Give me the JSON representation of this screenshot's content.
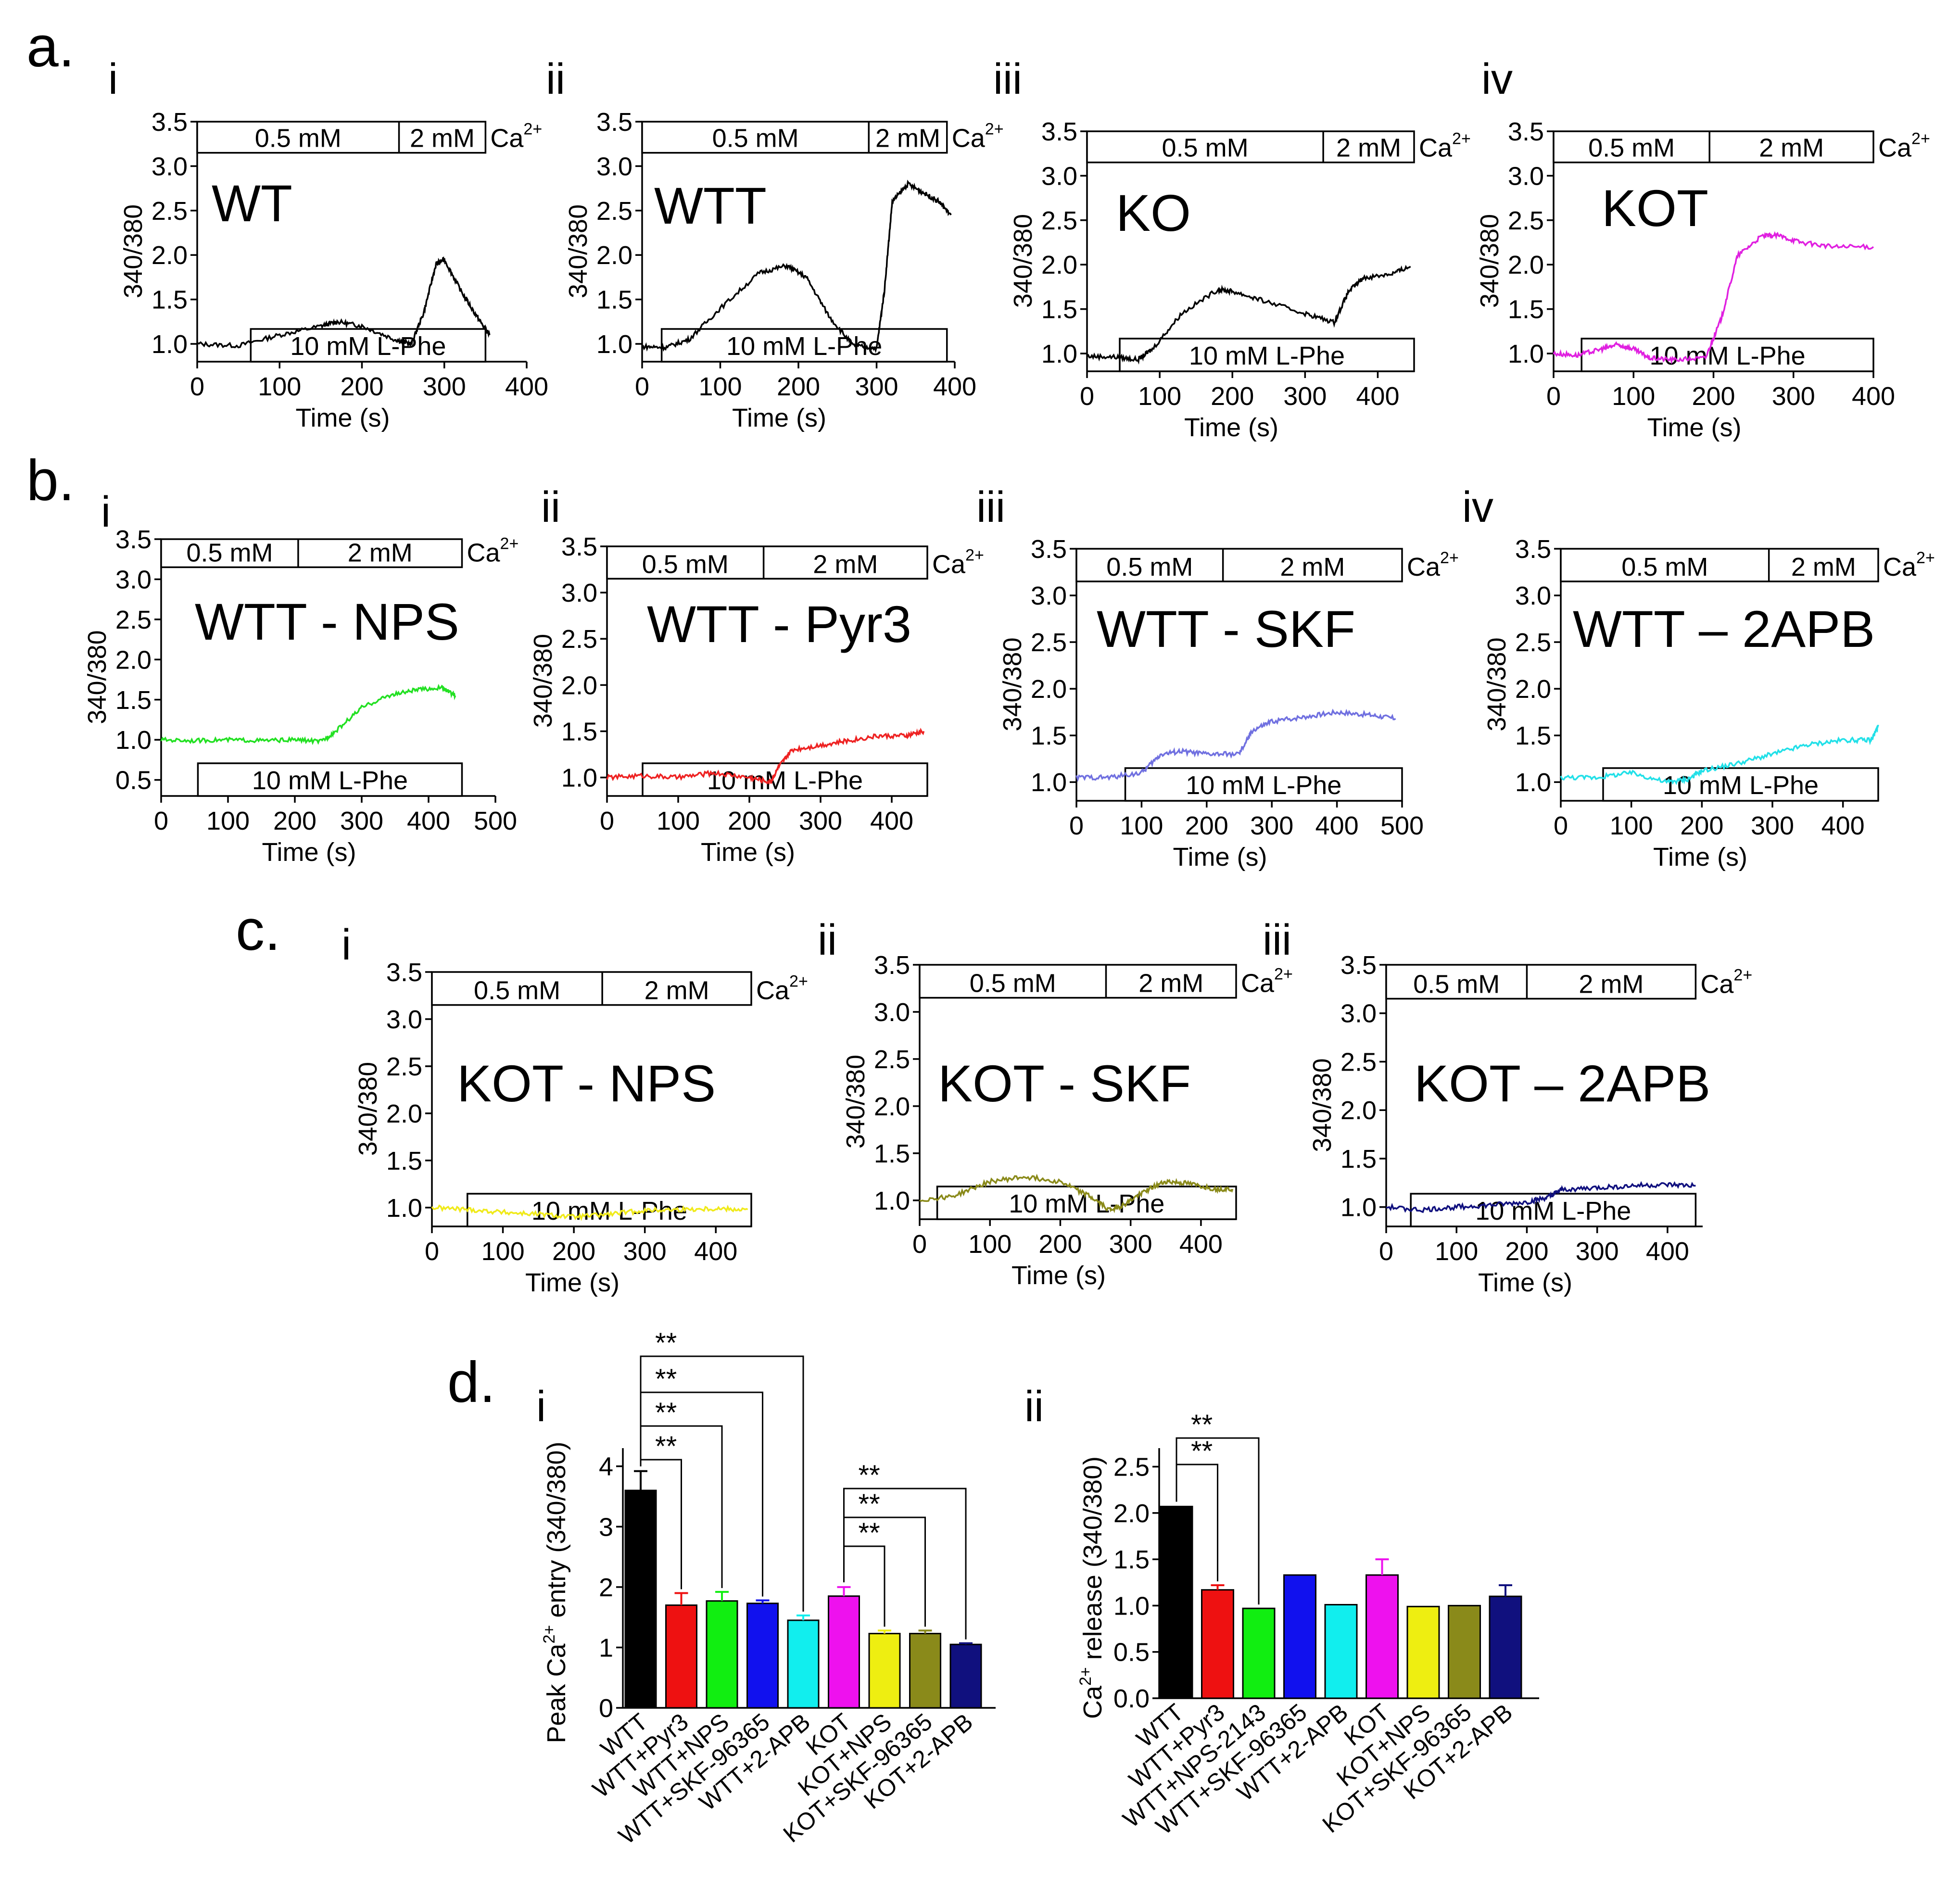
{
  "figure_labels": {
    "panels": [
      "a.",
      "b.",
      "c.",
      "d."
    ],
    "roman": [
      "i",
      "ii",
      "iii",
      "iv"
    ]
  },
  "common": {
    "y_label": "340/380",
    "x_label": "Time (s)",
    "ca_label": "Ca",
    "ca_sup": "2+",
    "low_ca": "0.5 mM",
    "high_ca": "2 mM",
    "lphe": "10 mM L-Phe"
  },
  "chart_data": [
    {
      "id": "a-i",
      "type": "line",
      "title": "WT",
      "xlabel": "Time (s)",
      "ylabel": "340/380",
      "xlim": [
        0,
        400
      ],
      "ylim": [
        0.8,
        3.5
      ],
      "xticks": [
        "0",
        "100",
        "200",
        "300",
        "400"
      ],
      "yticks": [
        "1.0",
        "1.5",
        "2.0",
        "2.5",
        "3.0",
        "3.5"
      ],
      "ca_switch_s": 245,
      "ca_end_s": 350,
      "lphe_start_s": 65,
      "lphe_end_s": 350,
      "color": "#000000",
      "series": [
        {
          "name": "WT",
          "x": [
            0,
            50,
            100,
            150,
            170,
            200,
            240,
            260,
            275,
            290,
            300,
            320,
            340,
            355
          ],
          "y": [
            1.0,
            0.98,
            1.1,
            1.2,
            1.25,
            1.2,
            1.05,
            1.0,
            1.35,
            1.9,
            1.95,
            1.6,
            1.3,
            1.1
          ]
        }
      ]
    },
    {
      "id": "a-ii",
      "type": "line",
      "title": "WTT",
      "xlabel": "Time (s)",
      "ylabel": "340/380",
      "xlim": [
        0,
        400
      ],
      "ylim": [
        0.8,
        3.5
      ],
      "xticks": [
        "0",
        "100",
        "200",
        "300",
        "400"
      ],
      "yticks": [
        "1.0",
        "1.5",
        "2.0",
        "2.5",
        "3.0",
        "3.5"
      ],
      "ca_switch_s": 290,
      "ca_end_s": 390,
      "lphe_start_s": 25,
      "lphe_end_s": 390,
      "color": "#000000",
      "series": [
        {
          "name": "WTT",
          "x": [
            0,
            30,
            60,
            100,
            150,
            185,
            210,
            240,
            270,
            300,
            310,
            320,
            340,
            360,
            380,
            395
          ],
          "y": [
            0.97,
            0.96,
            1.05,
            1.4,
            1.8,
            1.88,
            1.75,
            1.3,
            0.98,
            0.95,
            1.6,
            2.6,
            2.8,
            2.7,
            2.6,
            2.45
          ]
        }
      ]
    },
    {
      "id": "a-iii",
      "type": "line",
      "title": "KO",
      "xlabel": "Time (s)",
      "ylabel": "340/380",
      "xlim": [
        0,
        450
      ],
      "ylim": [
        0.8,
        3.5
      ],
      "xticks": [
        "0",
        "100",
        "200",
        "300",
        "400"
      ],
      "yticks": [
        "1.0",
        "1.5",
        "2.0",
        "2.5",
        "3.0",
        "3.5"
      ],
      "ca_switch_s": 325,
      "ca_end_s": 450,
      "lphe_start_s": 45,
      "lphe_end_s": 450,
      "color": "#000000",
      "series": [
        {
          "name": "KO",
          "x": [
            0,
            40,
            70,
            90,
            130,
            180,
            200,
            240,
            300,
            340,
            360,
            380,
            420,
            445
          ],
          "y": [
            0.97,
            0.96,
            0.93,
            1.05,
            1.45,
            1.72,
            1.7,
            1.6,
            1.45,
            1.35,
            1.7,
            1.85,
            1.9,
            1.98
          ]
        }
      ]
    },
    {
      "id": "a-iv",
      "type": "line",
      "title": "KOT",
      "xlabel": "Time (s)",
      "ylabel": "340/380",
      "xlim": [
        0,
        400
      ],
      "ylim": [
        0.8,
        3.5
      ],
      "xticks": [
        "0",
        "100",
        "200",
        "300",
        "400"
      ],
      "yticks": [
        "1.0",
        "1.5",
        "2.0",
        "2.5",
        "3.0",
        "3.5"
      ],
      "ca_switch_s": 195,
      "ca_end_s": 400,
      "lphe_start_s": 35,
      "lphe_end_s": 400,
      "color": "#e020e0",
      "series": [
        {
          "name": "KOT",
          "x": [
            0,
            30,
            60,
            80,
            100,
            120,
            150,
            190,
            210,
            230,
            260,
            280,
            310,
            350,
            400
          ],
          "y": [
            1.0,
            0.98,
            1.05,
            1.1,
            1.05,
            0.95,
            0.93,
            0.95,
            1.4,
            2.1,
            2.32,
            2.33,
            2.25,
            2.2,
            2.2
          ]
        }
      ]
    },
    {
      "id": "b-i",
      "type": "line",
      "title": "WTT - NPS",
      "xlabel": "Time (s)",
      "ylabel": "340/380",
      "xlim": [
        0,
        500
      ],
      "ylim": [
        0.3,
        3.5
      ],
      "xticks": [
        "0",
        "100",
        "200",
        "300",
        "400",
        "500"
      ],
      "yticks": [
        "0.5",
        "1.0",
        "1.5",
        "2.0",
        "2.5",
        "3.0",
        "3.5"
      ],
      "ca_switch_s": 205,
      "ca_end_s": 450,
      "lphe_start_s": 55,
      "lphe_end_s": 450,
      "color": "#22e022",
      "series": [
        {
          "name": "WTT - NPS",
          "x": [
            0,
            50,
            100,
            150,
            200,
            240,
            260,
            300,
            340,
            380,
            420,
            440
          ],
          "y": [
            1.0,
            0.99,
            1.0,
            0.99,
            1.0,
            0.98,
            1.1,
            1.4,
            1.55,
            1.62,
            1.65,
            1.55
          ]
        }
      ]
    },
    {
      "id": "b-ii",
      "type": "line",
      "title": "WTT - Pyr3",
      "xlabel": "Time (s)",
      "ylabel": "340/380",
      "xlim": [
        0,
        450
      ],
      "ylim": [
        0.8,
        3.5
      ],
      "xticks": [
        "0",
        "100",
        "200",
        "300",
        "400"
      ],
      "yticks": [
        "1.0",
        "1.5",
        "2.0",
        "2.5",
        "3.0",
        "3.5"
      ],
      "ca_switch_s": 220,
      "ca_end_s": 450,
      "lphe_start_s": 50,
      "lphe_end_s": 450,
      "color": "#ee2222",
      "series": [
        {
          "name": "WTT - Pyr3",
          "x": [
            0,
            50,
            100,
            150,
            200,
            230,
            240,
            260,
            300,
            340,
            380,
            420,
            445
          ],
          "y": [
            1.0,
            1.02,
            1.0,
            1.05,
            1.0,
            0.95,
            1.1,
            1.3,
            1.35,
            1.4,
            1.45,
            1.45,
            1.5
          ]
        }
      ]
    },
    {
      "id": "b-iii",
      "type": "line",
      "title": "WTT - SKF",
      "xlabel": "Time (s)",
      "ylabel": "340/380",
      "xlim": [
        0,
        500
      ],
      "ylim": [
        0.8,
        3.5
      ],
      "xticks": [
        "0",
        "100",
        "200",
        "300",
        "400",
        "500"
      ],
      "yticks": [
        "1.0",
        "1.5",
        "2.0",
        "2.5",
        "3.0",
        "3.5"
      ],
      "ca_switch_s": 225,
      "ca_end_s": 500,
      "lphe_start_s": 75,
      "lphe_end_s": 500,
      "color": "#7070e0",
      "series": [
        {
          "name": "WTT - SKF",
          "x": [
            0,
            50,
            100,
            130,
            160,
            200,
            250,
            270,
            300,
            350,
            400,
            450,
            490
          ],
          "y": [
            1.05,
            1.05,
            1.1,
            1.3,
            1.33,
            1.3,
            1.3,
            1.55,
            1.65,
            1.7,
            1.75,
            1.72,
            1.68
          ]
        }
      ]
    },
    {
      "id": "b-iv",
      "type": "line",
      "title": "WTT – 2APB",
      "xlabel": "Time (s)",
      "ylabel": "340/380",
      "xlim": [
        0,
        450
      ],
      "ylim": [
        0.8,
        3.5
      ],
      "xticks": [
        "0",
        "100",
        "200",
        "300",
        "400"
      ],
      "yticks": [
        "1.0",
        "1.5",
        "2.0",
        "2.5",
        "3.0",
        "3.5"
      ],
      "ca_switch_s": 295,
      "ca_end_s": 450,
      "lphe_start_s": 60,
      "lphe_end_s": 450,
      "color": "#22e0e8",
      "series": [
        {
          "name": "WTT – 2APB",
          "x": [
            0,
            50,
            100,
            150,
            180,
            200,
            250,
            300,
            350,
            400,
            440,
            450
          ],
          "y": [
            1.05,
            1.05,
            1.1,
            1.0,
            1.03,
            1.12,
            1.2,
            1.3,
            1.4,
            1.45,
            1.45,
            1.6
          ]
        }
      ]
    },
    {
      "id": "c-i",
      "type": "line",
      "title": "KOT - NPS",
      "xlabel": "Time (s)",
      "ylabel": "340/380",
      "xlim": [
        0,
        450
      ],
      "ylim": [
        0.8,
        3.5
      ],
      "xticks": [
        "0",
        "100",
        "200",
        "300",
        "400"
      ],
      "yticks": [
        "1.0",
        "1.5",
        "2.0",
        "2.5",
        "3.0",
        "3.5"
      ],
      "ca_switch_s": 240,
      "ca_end_s": 450,
      "lphe_start_s": 50,
      "lphe_end_s": 450,
      "color": "#f0ea1a",
      "series": [
        {
          "name": "KOT - NPS",
          "x": [
            0,
            50,
            100,
            150,
            200,
            250,
            300,
            350,
            400,
            445
          ],
          "y": [
            1.0,
            0.98,
            0.95,
            0.93,
            0.9,
            0.93,
            0.97,
            0.98,
            0.99,
            0.98
          ]
        }
      ]
    },
    {
      "id": "c-ii",
      "type": "line",
      "title": "KOT - SKF",
      "xlabel": "Time (s)",
      "ylabel": "340/380",
      "xlim": [
        0,
        450
      ],
      "ylim": [
        0.8,
        3.5
      ],
      "xticks": [
        "0",
        "100",
        "200",
        "300",
        "400"
      ],
      "yticks": [
        "1.0",
        "1.5",
        "2.0",
        "2.5",
        "3.0",
        "3.5"
      ],
      "ca_switch_s": 265,
      "ca_end_s": 450,
      "lphe_start_s": 25,
      "lphe_end_s": 450,
      "color": "#8a8a1a",
      "series": [
        {
          "name": "KOT - SKF",
          "x": [
            0,
            50,
            100,
            150,
            200,
            240,
            270,
            290,
            320,
            350,
            380,
            420,
            445
          ],
          "y": [
            1.0,
            1.05,
            1.2,
            1.25,
            1.2,
            1.05,
            0.9,
            0.95,
            1.1,
            1.2,
            1.18,
            1.12,
            1.12
          ]
        }
      ]
    },
    {
      "id": "c-iii",
      "type": "line",
      "title": "KOT – 2APB",
      "xlabel": "Time (s)",
      "ylabel": "340/380",
      "xlim": [
        0,
        450
      ],
      "ylim": [
        0.8,
        3.5
      ],
      "xticks": [
        "0",
        "100",
        "200",
        "300",
        "400"
      ],
      "yticks": [
        "1.0",
        "1.5",
        "2.0",
        "2.5",
        "3.0",
        "3.5"
      ],
      "ca_switch_s": 200,
      "ca_end_s": 440,
      "lphe_start_s": 35,
      "lphe_end_s": 440,
      "color": "#10107e",
      "series": [
        {
          "name": "KOT – 2APB",
          "x": [
            0,
            50,
            100,
            150,
            200,
            230,
            250,
            300,
            350,
            400,
            440
          ],
          "y": [
            1.0,
            0.97,
            1.0,
            1.02,
            1.05,
            1.1,
            1.18,
            1.2,
            1.22,
            1.23,
            1.22
          ]
        }
      ]
    },
    {
      "id": "d-i",
      "type": "bar",
      "ylabel": "Peak Ca2+ entry (340/380)",
      "ylabel_parts": [
        "Peak Ca",
        "2+",
        " entry (340/380)"
      ],
      "ylim": [
        0,
        4.3
      ],
      "yticks": [
        "0",
        "1",
        "2",
        "3",
        "4"
      ],
      "categories": [
        "WTT",
        "WTT+Pyr3",
        "WTT+NPS",
        "WTT+SKF-96365",
        "WTT+2-APB",
        "KOT",
        "KOT+NPS",
        "KOT+SKF-96365",
        "KOT+2-APB"
      ],
      "values": [
        3.6,
        1.7,
        1.77,
        1.73,
        1.45,
        1.85,
        1.23,
        1.23,
        1.05
      ],
      "errors": [
        0.32,
        0.2,
        0.15,
        0.05,
        0.08,
        0.15,
        0.05,
        0.05,
        0.02
      ],
      "colors": [
        "#000000",
        "#ee1111",
        "#11ee11",
        "#1111ee",
        "#11eeee",
        "#ee11ee",
        "#eeee11",
        "#8a8a1a",
        "#10107e"
      ],
      "significance": [
        {
          "from": 0,
          "to": 1,
          "label": "**"
        },
        {
          "from": 0,
          "to": 2,
          "label": "**"
        },
        {
          "from": 0,
          "to": 3,
          "label": "**"
        },
        {
          "from": 0,
          "to": 4,
          "label": "**"
        },
        {
          "from": 5,
          "to": 6,
          "label": "**"
        },
        {
          "from": 5,
          "to": 7,
          "label": "**"
        },
        {
          "from": 5,
          "to": 8,
          "label": "**"
        }
      ]
    },
    {
      "id": "d-ii",
      "type": "bar",
      "ylabel": "Ca2+ release (340/380)",
      "ylabel_parts": [
        "Ca",
        "2+",
        " release (340/380)"
      ],
      "ylim": [
        0,
        2.7
      ],
      "yticks": [
        "0.0",
        "0.5",
        "1.0",
        "1.5",
        "2.0",
        "2.5"
      ],
      "categories": [
        "WTT",
        "WTT+Pyr3",
        "WTT+NPS-2143",
        "WTT+SKF-96365",
        "WTT+2-APB",
        "KOT",
        "KOT+NPS",
        "KOT+SKF-96365",
        "KOT+2-APB"
      ],
      "values": [
        2.07,
        1.17,
        0.97,
        1.33,
        1.01,
        1.33,
        0.99,
        1.0,
        1.1
      ],
      "errors": [
        0.0,
        0.05,
        0.0,
        0.0,
        0.0,
        0.17,
        0.0,
        0.0,
        0.12
      ],
      "colors": [
        "#000000",
        "#ee1111",
        "#11ee11",
        "#1111ee",
        "#11eeee",
        "#ee11ee",
        "#eeee11",
        "#8a8a1a",
        "#10107e"
      ],
      "significance": [
        {
          "from": 0,
          "to": 1,
          "label": "**"
        },
        {
          "from": 0,
          "to": 2,
          "label": "**"
        }
      ]
    }
  ]
}
